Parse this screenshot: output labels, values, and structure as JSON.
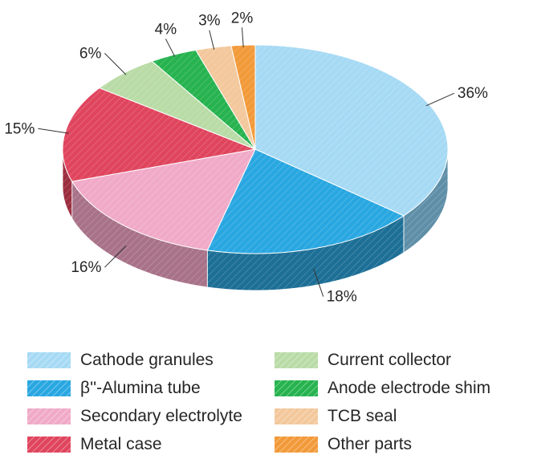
{
  "chart_data": {
    "type": "pie",
    "title": "",
    "slices": [
      {
        "label": "Cathode granules",
        "value": 36,
        "display": "36%",
        "color": "#a6daf4",
        "side": "#5f8fa8"
      },
      {
        "label": "β''-Alumina tube",
        "value": 18,
        "display": "18%",
        "color": "#29a7e1",
        "side": "#1d6f96"
      },
      {
        "label": "Secondary electrolyte",
        "value": 16,
        "display": "16%",
        "color": "#f0aac8",
        "side": "#a87288"
      },
      {
        "label": "Metal case",
        "value": 15,
        "display": "15%",
        "color": "#e0455e",
        "side": "#9b2e3f"
      },
      {
        "label": "Current collector",
        "value": 6,
        "display": "6%",
        "color": "#b9dba6",
        "side": "#7f9a71"
      },
      {
        "label": "Anode electrode shim",
        "value": 4,
        "display": "4%",
        "color": "#27b34f",
        "side": "#1a7a36"
      },
      {
        "label": "TCB seal",
        "value": 3,
        "display": "3%",
        "color": "#f3c89c",
        "side": "#a8896a"
      },
      {
        "label": "Other parts",
        "value": 2,
        "display": "2%",
        "color": "#f29a3a",
        "side": "#a86a27"
      }
    ],
    "legend_placement": "bottom",
    "legend_columns": 2,
    "style": "3d"
  }
}
